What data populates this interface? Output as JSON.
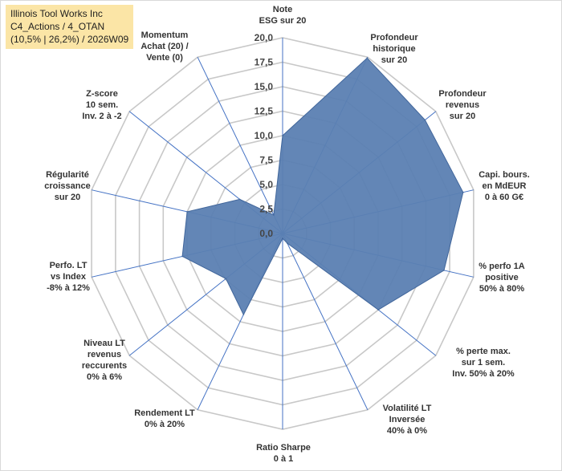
{
  "title_box": {
    "line1": "Illinois Tool Works Inc",
    "line2": "C4_Actions / 4_OTAN",
    "line3": "(10,5% | 26,2%) / 2026W09"
  },
  "colors": {
    "background": "#ffffff",
    "title_bg": "#fbe5a6",
    "grid": "#c8c8c8",
    "axis": "#4472c4",
    "fill": "#5b7fb2",
    "stroke": "#41669b"
  },
  "chart_data": {
    "type": "radar",
    "rmin": 0,
    "rmax": 20,
    "tick_step": 2.5,
    "tick_labels": [
      "0,0",
      "2,5",
      "5,0",
      "7,5",
      "10,0",
      "12,5",
      "15,0",
      "17,5",
      "20,0"
    ],
    "axes": [
      {
        "label": [
          "Note",
          "ESG sur 20"
        ],
        "value": 10.0
      },
      {
        "label": [
          "Profondeur",
          "historique",
          "sur 20"
        ],
        "value": 19.9
      },
      {
        "label": [
          "Profondeur",
          "revenus",
          "sur 20"
        ],
        "value": 18.6
      },
      {
        "label": [
          "Capi. bours.",
          "en MdEUR",
          "0 à 60 G€"
        ],
        "value": 18.9
      },
      {
        "label": [
          "% perfo 1A",
          "positive",
          "50% à 80%"
        ],
        "value": 16.9
      },
      {
        "label": [
          "% perte max.",
          "sur 1 sem.",
          "Inv. 50% à 20%"
        ],
        "value": 12.5
      },
      {
        "label": [
          "Volatilité LT",
          "Inversée",
          "40% à 0%"
        ],
        "value": 1.1
      },
      {
        "label": [
          "Ratio Sharpe",
          "0 à 1"
        ],
        "value": 0.5
      },
      {
        "label": [
          "Rendement LT",
          "0% à 20%"
        ],
        "value": 9.2
      },
      {
        "label": [
          "Niveau LT",
          "revenus",
          "reccurents",
          "0% à 6%"
        ],
        "value": 7.4
      },
      {
        "label": [
          "Perfo. LT",
          "vs Index",
          "-8% à 12%"
        ],
        "value": 10.5
      },
      {
        "label": [
          "Régularité",
          "croissance",
          "sur 20"
        ],
        "value": 10.0
      },
      {
        "label": [
          "Z-score",
          "10 sem.",
          "Inv. 2 à -2"
        ],
        "value": 5.6
      },
      {
        "label": [
          "Momentum",
          "Achat (20) /",
          "Vente (0)"
        ],
        "value": 2.1
      }
    ]
  }
}
